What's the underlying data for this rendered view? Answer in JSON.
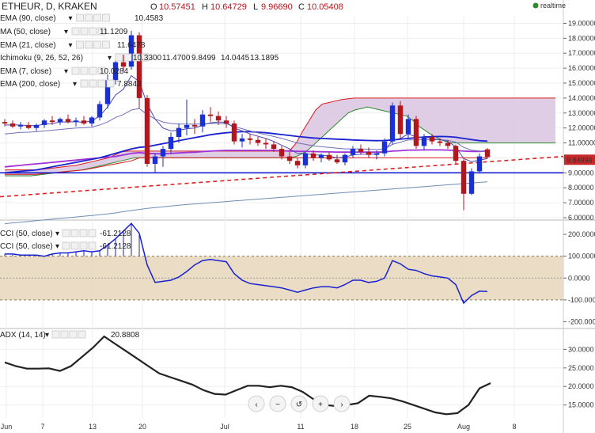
{
  "header": {
    "title": "ETHEUR, D, KRAKEN",
    "o_label": "O",
    "o_value": "10.57451",
    "h_label": "H",
    "h_value": "10.64729",
    "l_label": "L",
    "l_value": "9.96690",
    "c_label": "C",
    "c_value": "10.05408",
    "realtime": "realtime"
  },
  "colors": {
    "bull": "#1a2fd6",
    "bear": "#b3161d",
    "ema90": "#a032d8",
    "ma50": "#1a22d0",
    "ema21": "#7070b8",
    "ema7": "#4a4ab0",
    "ema200": "#6e8fb5",
    "cloud_fill": "#d8c4e0",
    "kijun": "#d81b1b",
    "chikou": "#2e8b2e",
    "cci": "#1a22d0",
    "cci_band": "#e9d9bf",
    "adx": "#222222"
  },
  "indicators": [
    {
      "name": "EMA (90, close)",
      "value": "10.4583",
      "color": "#a032d8"
    },
    {
      "name": "MA (50, close)",
      "value": "11.1209",
      "color": "#1a22d0"
    },
    {
      "name": "EMA (21, close)",
      "value": "11.6478",
      "color": "#7070b8"
    },
    {
      "name": "Ichimoku (9, 26, 52, 26)",
      "values": [
        "10.3300",
        "11.4700",
        "9.8499",
        "14.0445",
        "13.1895"
      ],
      "colors": [
        "#1a75d6",
        "#b3161d",
        "#2e8b2e",
        "#2e8b2e",
        "#b3161d"
      ]
    },
    {
      "name": "EMA (7, close)",
      "value": "10.0284",
      "color": "#4a4ab0"
    },
    {
      "name": "EMA (200, close)",
      "value": "7.8843",
      "color": "#6e8fb5"
    }
  ],
  "price_axis": [
    "19.00000",
    "18.00000",
    "17.00000",
    "16.00000",
    "15.00000",
    "14.00000",
    "13.00000",
    "12.00000",
    "11.00000",
    "10.00000",
    "9.00000",
    "8.00000",
    "7.00000",
    "6.00000"
  ],
  "price_label": "9.84994",
  "cci_labels": [
    {
      "name": "CCI (50, close)",
      "value": "-61.2128"
    },
    {
      "name": "CCI (50, close)",
      "value": "-61.2128"
    }
  ],
  "cci_axis": [
    "200.0000",
    "100.0000",
    "0.0000",
    "-100.0000",
    "-200.0000"
  ],
  "adx_label": {
    "name": "ADX (14, 14)",
    "value": "20.8808"
  },
  "adx_axis": [
    "30.0000",
    "25.0000",
    "20.0000",
    "15.0000"
  ],
  "x_axis": [
    "Jun",
    "7",
    "13",
    "20",
    "Jul",
    "11",
    "18",
    "25",
    "Aug",
    "8"
  ],
  "chart_data": {
    "type": "candlestick",
    "price_range": [
      6,
      19.5
    ],
    "candles": [
      {
        "o": 12.4,
        "h": 12.6,
        "l": 12.1,
        "c": 12.3
      },
      {
        "o": 12.3,
        "h": 12.5,
        "l": 12.0,
        "c": 12.1
      },
      {
        "o": 12.1,
        "h": 12.4,
        "l": 11.9,
        "c": 12.2
      },
      {
        "o": 12.2,
        "h": 12.4,
        "l": 11.9,
        "c": 12.0
      },
      {
        "o": 12.0,
        "h": 12.3,
        "l": 11.8,
        "c": 12.2
      },
      {
        "o": 12.2,
        "h": 12.6,
        "l": 12.0,
        "c": 12.5
      },
      {
        "o": 12.5,
        "h": 12.8,
        "l": 12.2,
        "c": 12.4
      },
      {
        "o": 12.4,
        "h": 12.7,
        "l": 12.2,
        "c": 12.6
      },
      {
        "o": 12.6,
        "h": 12.9,
        "l": 12.3,
        "c": 12.4
      },
      {
        "o": 12.4,
        "h": 12.7,
        "l": 12.1,
        "c": 12.5
      },
      {
        "o": 12.5,
        "h": 12.8,
        "l": 12.2,
        "c": 12.3
      },
      {
        "o": 12.3,
        "h": 12.8,
        "l": 12.1,
        "c": 12.7
      },
      {
        "o": 12.7,
        "h": 13.8,
        "l": 12.5,
        "c": 13.6
      },
      {
        "o": 13.6,
        "h": 15.6,
        "l": 13.3,
        "c": 15.2
      },
      {
        "o": 15.2,
        "h": 16.6,
        "l": 14.9,
        "c": 16.4
      },
      {
        "o": 16.4,
        "h": 16.9,
        "l": 15.8,
        "c": 16.1
      },
      {
        "o": 16.1,
        "h": 18.5,
        "l": 15.9,
        "c": 18.2
      },
      {
        "o": 18.2,
        "h": 18.4,
        "l": 13.3,
        "c": 14.0
      },
      {
        "o": 14.0,
        "h": 14.2,
        "l": 9.4,
        "c": 9.6
      },
      {
        "o": 9.6,
        "h": 10.3,
        "l": 9.0,
        "c": 10.1
      },
      {
        "o": 10.1,
        "h": 10.8,
        "l": 9.4,
        "c": 10.6
      },
      {
        "o": 10.6,
        "h": 11.7,
        "l": 10.3,
        "c": 11.4
      },
      {
        "o": 11.4,
        "h": 12.3,
        "l": 11.0,
        "c": 12.0
      },
      {
        "o": 12.0,
        "h": 13.9,
        "l": 11.5,
        "c": 12.2
      },
      {
        "o": 12.2,
        "h": 12.6,
        "l": 11.6,
        "c": 12.1
      },
      {
        "o": 12.1,
        "h": 13.2,
        "l": 11.7,
        "c": 12.9
      },
      {
        "o": 12.9,
        "h": 13.4,
        "l": 12.4,
        "c": 12.8
      },
      {
        "o": 12.8,
        "h": 13.1,
        "l": 12.2,
        "c": 12.5
      },
      {
        "o": 12.5,
        "h": 12.8,
        "l": 12.0,
        "c": 12.3
      },
      {
        "o": 12.3,
        "h": 12.5,
        "l": 10.9,
        "c": 11.1
      },
      {
        "o": 11.1,
        "h": 11.6,
        "l": 10.7,
        "c": 11.3
      },
      {
        "o": 11.3,
        "h": 11.6,
        "l": 10.9,
        "c": 11.2
      },
      {
        "o": 11.2,
        "h": 11.4,
        "l": 10.8,
        "c": 11.0
      },
      {
        "o": 11.0,
        "h": 11.3,
        "l": 10.6,
        "c": 10.9
      },
      {
        "o": 10.9,
        "h": 11.1,
        "l": 10.4,
        "c": 10.6
      },
      {
        "o": 10.6,
        "h": 10.8,
        "l": 9.9,
        "c": 10.1
      },
      {
        "o": 10.1,
        "h": 10.4,
        "l": 9.6,
        "c": 9.8
      },
      {
        "o": 9.8,
        "h": 10.0,
        "l": 9.3,
        "c": 9.5
      },
      {
        "o": 9.5,
        "h": 10.4,
        "l": 9.3,
        "c": 10.3
      },
      {
        "o": 10.3,
        "h": 10.5,
        "l": 9.8,
        "c": 10.0
      },
      {
        "o": 10.0,
        "h": 10.3,
        "l": 9.7,
        "c": 10.2
      },
      {
        "o": 10.2,
        "h": 10.4,
        "l": 9.8,
        "c": 9.9
      },
      {
        "o": 9.9,
        "h": 10.2,
        "l": 9.6,
        "c": 9.7
      },
      {
        "o": 9.7,
        "h": 10.3,
        "l": 9.5,
        "c": 10.2
      },
      {
        "o": 10.2,
        "h": 10.8,
        "l": 10.0,
        "c": 10.6
      },
      {
        "o": 10.6,
        "h": 10.9,
        "l": 10.2,
        "c": 10.4
      },
      {
        "o": 10.4,
        "h": 10.7,
        "l": 10.0,
        "c": 10.2
      },
      {
        "o": 10.2,
        "h": 10.5,
        "l": 9.9,
        "c": 10.3
      },
      {
        "o": 10.3,
        "h": 11.3,
        "l": 10.1,
        "c": 11.1
      },
      {
        "o": 11.1,
        "h": 13.7,
        "l": 10.9,
        "c": 13.5
      },
      {
        "o": 13.5,
        "h": 13.8,
        "l": 11.3,
        "c": 11.6
      },
      {
        "o": 11.6,
        "h": 12.9,
        "l": 11.3,
        "c": 12.6
      },
      {
        "o": 12.6,
        "h": 12.8,
        "l": 10.6,
        "c": 10.8
      },
      {
        "o": 10.8,
        "h": 11.6,
        "l": 10.5,
        "c": 11.4
      },
      {
        "o": 11.4,
        "h": 11.6,
        "l": 10.9,
        "c": 11.1
      },
      {
        "o": 11.1,
        "h": 11.3,
        "l": 10.8,
        "c": 11.0
      },
      {
        "o": 11.0,
        "h": 11.2,
        "l": 10.6,
        "c": 10.8
      },
      {
        "o": 10.8,
        "h": 10.9,
        "l": 9.6,
        "c": 9.8
      },
      {
        "o": 9.8,
        "h": 9.9,
        "l": 6.5,
        "c": 7.6
      },
      {
        "o": 7.6,
        "h": 9.3,
        "l": 7.5,
        "c": 9.1
      },
      {
        "o": 9.1,
        "h": 10.3,
        "l": 9.0,
        "c": 10.1
      },
      {
        "o": 10.57,
        "h": 10.65,
        "l": 9.97,
        "c": 10.05
      }
    ],
    "ema90": [
      9.4,
      9.45,
      9.5,
      9.55,
      9.6,
      9.65,
      9.7,
      9.75,
      9.8,
      9.85,
      9.9,
      9.95,
      10.0,
      10.05,
      10.1,
      10.2,
      10.3,
      10.35,
      10.3,
      10.28,
      10.28,
      10.3,
      10.33,
      10.36,
      10.38,
      10.42,
      10.45,
      10.48,
      10.5,
      10.5,
      10.5,
      10.5,
      10.5,
      10.5,
      10.5,
      10.48,
      10.46,
      10.44,
      10.43,
      10.42,
      10.41,
      10.4,
      10.39,
      10.39,
      10.39,
      10.39,
      10.39,
      10.39,
      10.4,
      10.45,
      10.48,
      10.52,
      10.52,
      10.53,
      10.53,
      10.53,
      10.52,
      10.5,
      10.45,
      10.43,
      10.43,
      10.45
    ],
    "ma50": [
      9.0,
      9.05,
      9.1,
      9.15,
      9.2,
      9.3,
      9.4,
      9.5,
      9.6,
      9.7,
      9.8,
      9.9,
      10.0,
      10.15,
      10.3,
      10.45,
      10.6,
      10.7,
      10.75,
      10.85,
      10.95,
      11.05,
      11.15,
      11.25,
      11.35,
      11.45,
      11.55,
      11.62,
      11.68,
      11.72,
      11.75,
      11.75,
      11.72,
      11.68,
      11.62,
      11.56,
      11.5,
      11.43,
      11.38,
      11.33,
      11.3,
      11.28,
      11.25,
      11.23,
      11.2,
      11.18,
      11.16,
      11.15,
      11.16,
      11.2,
      11.25,
      11.3,
      11.35,
      11.4,
      11.42,
      11.43,
      11.42,
      11.38,
      11.3,
      11.22,
      11.15,
      11.12
    ],
    "ema21": [
      11.6,
      11.65,
      11.7,
      11.72,
      11.75,
      11.8,
      11.85,
      11.9,
      11.95,
      12.0,
      12.02,
      12.05,
      12.2,
      12.4,
      12.7,
      12.9,
      13.2,
      13.3,
      12.9,
      12.6,
      12.4,
      12.3,
      12.27,
      12.26,
      12.25,
      12.27,
      12.3,
      12.3,
      12.28,
      12.1,
      11.95,
      11.8,
      11.67,
      11.55,
      11.43,
      11.3,
      11.15,
      11.0,
      10.9,
      10.8,
      10.75,
      10.7,
      10.65,
      10.6,
      10.6,
      10.6,
      10.58,
      10.56,
      10.6,
      10.9,
      11.05,
      11.2,
      11.2,
      11.22,
      11.22,
      11.2,
      11.18,
      11.05,
      10.7,
      10.52,
      10.45,
      10.4
    ],
    "ema7": [
      12.2,
      12.2,
      12.2,
      12.15,
      12.15,
      12.25,
      12.3,
      12.4,
      12.4,
      12.42,
      12.38,
      12.48,
      12.8,
      13.4,
      14.2,
      14.6,
      15.5,
      15.1,
      13.6,
      12.6,
      12.0,
      11.8,
      11.85,
      11.95,
      12.0,
      12.2,
      12.35,
      12.4,
      12.38,
      12.0,
      11.8,
      11.6,
      11.45,
      11.3,
      11.1,
      10.85,
      10.6,
      10.3,
      10.3,
      10.2,
      10.2,
      10.12,
      10.0,
      10.05,
      10.2,
      10.25,
      10.25,
      10.27,
      10.45,
      11.2,
      11.3,
      11.6,
      11.4,
      11.4,
      11.3,
      11.22,
      11.1,
      10.75,
      9.95,
      9.75,
      9.85,
      9.95
    ],
    "ema200": [
      5.6,
      5.65,
      5.7,
      5.75,
      5.8,
      5.85,
      5.9,
      5.95,
      6.0,
      6.05,
      6.1,
      6.15,
      6.2,
      6.25,
      6.32,
      6.4,
      6.48,
      6.55,
      6.62,
      6.68,
      6.73,
      6.78,
      6.83,
      6.88,
      6.92,
      6.96,
      7.0,
      7.04,
      7.08,
      7.12,
      7.16,
      7.2,
      7.24,
      7.28,
      7.32,
      7.36,
      7.4,
      7.44,
      7.48,
      7.52,
      7.56,
      7.6,
      7.64,
      7.68,
      7.72,
      7.76,
      7.8,
      7.84,
      7.88,
      7.92,
      7.96,
      8.0,
      8.04,
      8.08,
      8.12,
      8.16,
      8.2,
      8.24,
      8.28,
      8.32,
      8.36,
      8.4
    ],
    "kijun": [
      8.9,
      8.9,
      8.9,
      8.9,
      8.9,
      8.95,
      9.0,
      9.05,
      9.1,
      9.15,
      9.2,
      9.3,
      9.4,
      9.5,
      9.6,
      9.7,
      9.8,
      10.0,
      10.0,
      10.0,
      10.0,
      10.0,
      10.0,
      10.0,
      10.0,
      10.0,
      10.0,
      10.0,
      10.0,
      10.0,
      10.0,
      10.0,
      10.0,
      10.0,
      10.0,
      10.0,
      10.0,
      10.0,
      10.0,
      10.0,
      10.0,
      10.0,
      10.0,
      10.0,
      10.0,
      10.0,
      10.0,
      10.0,
      10.0,
      10.0,
      10.0,
      10.0,
      10.0,
      10.0,
      10.0,
      10.0,
      10.0,
      10.0,
      10.0,
      10.0,
      10.0,
      10.0
    ],
    "cloud": {
      "upper": [
        9.2,
        9.2,
        9.2,
        9.2,
        9.2,
        9.2,
        9.25,
        9.3,
        9.35,
        9.4,
        9.45,
        9.5,
        9.6,
        9.7,
        9.8,
        9.9,
        10.0,
        10.2,
        10.4,
        10.45,
        10.45,
        10.45,
        10.45,
        10.45,
        10.45,
        10.45,
        10.45,
        10.45,
        10.45,
        10.45,
        10.45,
        10.45,
        10.45,
        10.45,
        10.45,
        10.45,
        10.45,
        10.45,
        10.45,
        10.45,
        10.45,
        10.45,
        10.45,
        10.45,
        10.5,
        11.0,
        11.8,
        12.5,
        13.2,
        13.6,
        13.7,
        13.8,
        13.9,
        13.95,
        14.0,
        14.0,
        14.0,
        14.0,
        14.0,
        14.0,
        14.0,
        14.0,
        14.0,
        14.0,
        14.0,
        14.0,
        14.0,
        14.0,
        14.0,
        14.0,
        14.0,
        14.0,
        14.0,
        14.0,
        14.0,
        14.0,
        14.0,
        14.0,
        14.0,
        14.0,
        14.0,
        14.0,
        14.0,
        14.0,
        14.0,
        14.0
      ],
      "lower": [
        8.8,
        8.8,
        8.8,
        8.8,
        8.8,
        8.85,
        8.9,
        8.95,
        9.0,
        9.05,
        9.1,
        9.15,
        9.2,
        9.3,
        9.4,
        9.5,
        9.6,
        9.7,
        9.8,
        9.9,
        10.0,
        10.0,
        10.0,
        10.0,
        10.0,
        10.0,
        10.0,
        10.0,
        10.0,
        10.0,
        10.0,
        10.0,
        10.0,
        10.0,
        10.0,
        10.0,
        10.0,
        10.0,
        10.0,
        10.0,
        10.0,
        10.0,
        10.0,
        10.0,
        10.0,
        10.1,
        10.3,
        10.6,
        11.0,
        11.4,
        11.8,
        12.2,
        12.6,
        13.0,
        13.2,
        13.3,
        13.4,
        13.3,
        13.2,
        13.1,
        13.0,
        12.9,
        12.8,
        12.5,
        12.1,
        11.8,
        11.5,
        11.3,
        11.1,
        11.0,
        11.0,
        11.0,
        11.0,
        11.0,
        11.0,
        11.0,
        11.0,
        11.0,
        11.0,
        11.0,
        11.0,
        11.0,
        11.0,
        11.0,
        11.0,
        11.0
      ]
    },
    "support_level": 9.0,
    "trendline": {
      "start": 7.4,
      "end": 10.1
    },
    "cci": [
      110,
      110,
      105,
      105,
      105,
      100,
      110,
      115,
      115,
      120,
      125,
      120,
      125,
      150,
      180,
      215,
      250,
      205,
      60,
      -20,
      -15,
      -10,
      5,
      30,
      60,
      80,
      85,
      80,
      75,
      20,
      -10,
      -25,
      -30,
      -35,
      -40,
      -45,
      -55,
      -65,
      -55,
      -45,
      -40,
      -40,
      -45,
      -30,
      -10,
      -10,
      -20,
      -15,
      0,
      80,
      65,
      40,
      35,
      20,
      10,
      5,
      0,
      -30,
      -115,
      -80,
      -60,
      -61.2
    ],
    "cci_range": [
      -220,
      240
    ],
    "adx": [
      26.5,
      25.5,
      24.8,
      24.8,
      24.9,
      24.2,
      25.5,
      28.0,
      30.5,
      33.5,
      31.5,
      29.5,
      27.5,
      25.5,
      23.5,
      22.5,
      21.5,
      20.5,
      19.0,
      18.0,
      17.8,
      19.0,
      20.2,
      20.2,
      19.8,
      20.2,
      19.8,
      18.5,
      16.5,
      15.0,
      14.7,
      15.0,
      15.5,
      17.5,
      17.2,
      16.8,
      16.0,
      15.0,
      14.0,
      13.0,
      12.5,
      12.8,
      15.0,
      19.5,
      20.9
    ],
    "adx_range": [
      11.5,
      35
    ]
  }
}
